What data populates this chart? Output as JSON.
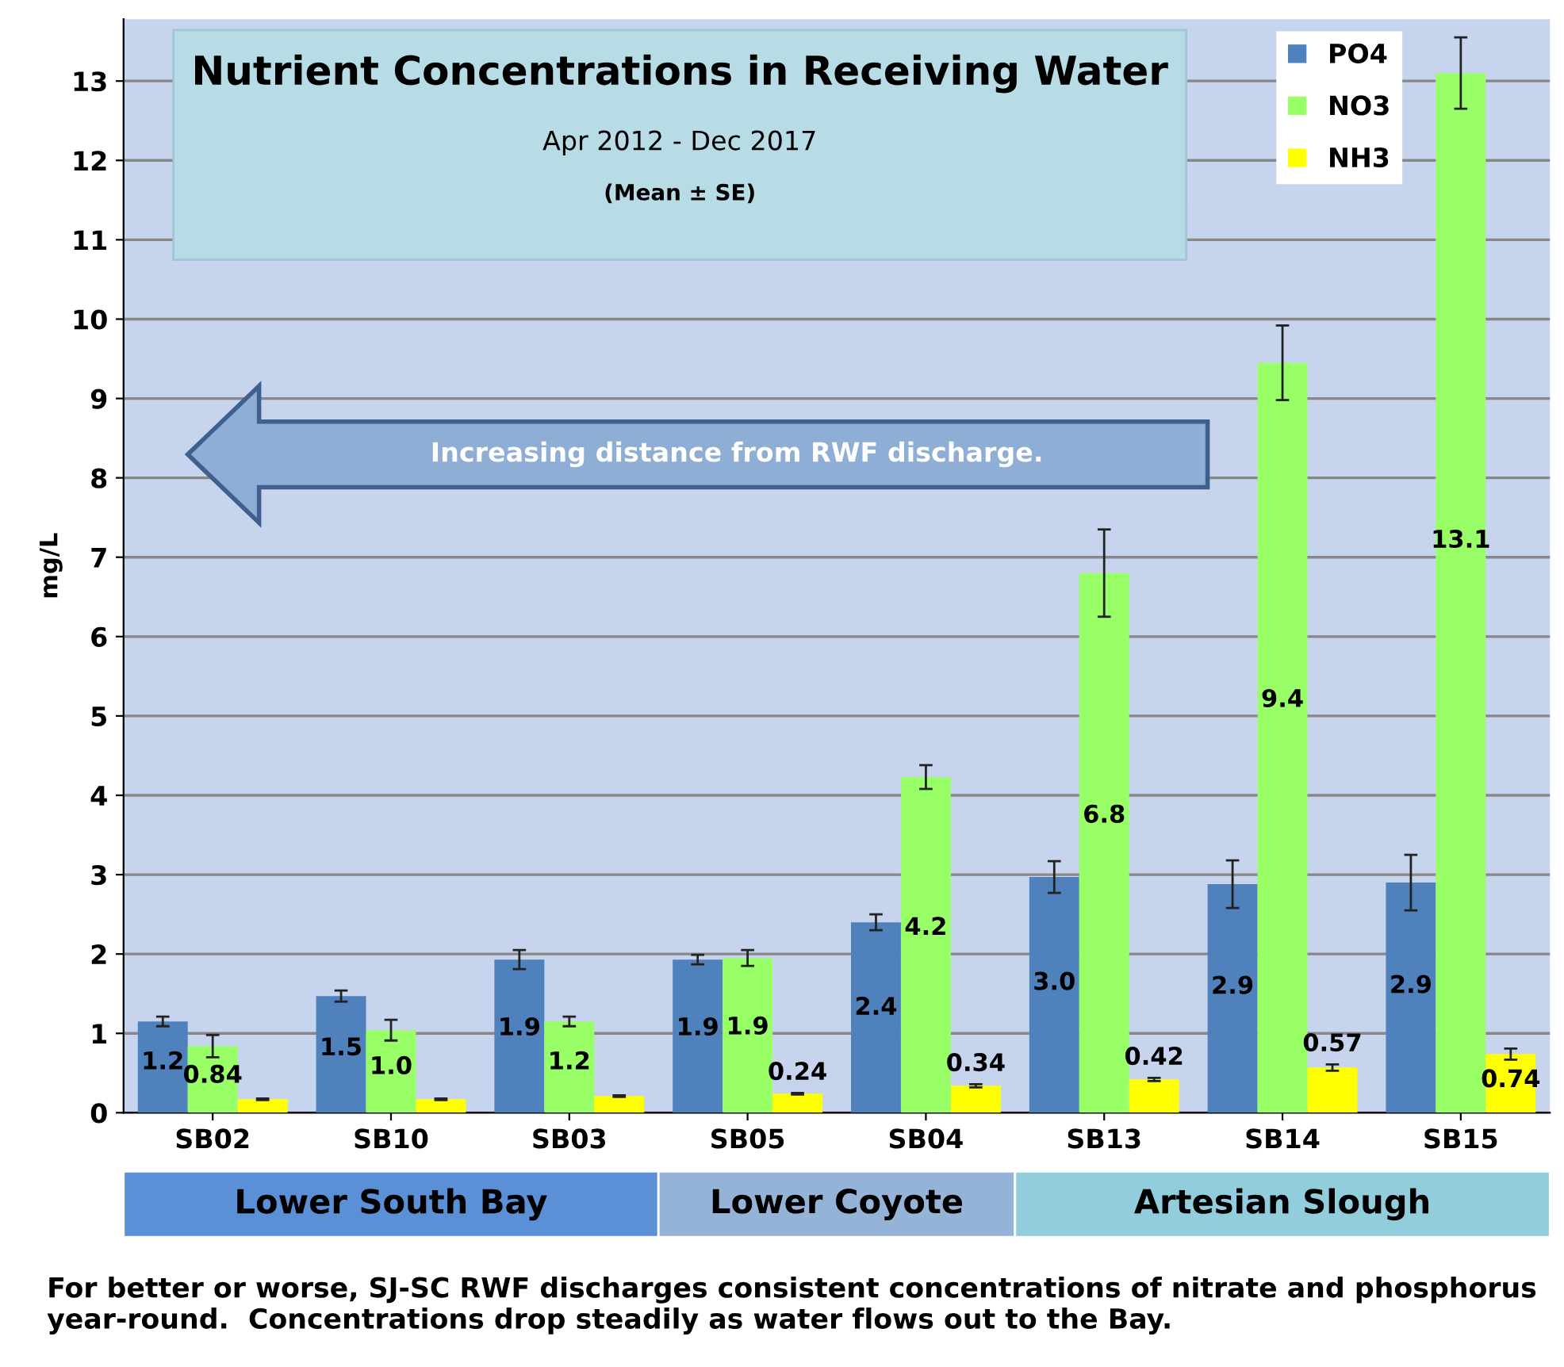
{
  "chart_data": {
    "type": "bar",
    "title": "Nutrient Concentrations in Receiving Water",
    "subtitle": "Apr 2012 - Dec 2017",
    "ylabel": "mg/L",
    "categories": [
      "SB02",
      "SB10",
      "SB03",
      "SB05",
      "SB04",
      "SB13",
      "SB14",
      "SB15"
    ],
    "series": [
      {
        "name": "PO4",
        "color": "#4f81bd",
        "values": [
          1.15,
          1.47,
          1.93,
          1.93,
          2.4,
          2.97,
          2.88,
          2.9
        ],
        "errors": [
          0.06,
          0.07,
          0.12,
          0.06,
          0.1,
          0.2,
          0.3,
          0.35
        ],
        "value_labels": [
          "1.2",
          "1.5",
          "1.9",
          "1.9",
          "2.4",
          "3.0",
          "2.9",
          "2.9"
        ]
      },
      {
        "name": "NO3",
        "color": "#99ff66",
        "values": [
          0.84,
          1.04,
          1.15,
          1.95,
          4.23,
          6.8,
          9.45,
          13.1
        ],
        "errors": [
          0.14,
          0.13,
          0.06,
          0.1,
          0.15,
          0.55,
          0.47,
          0.45
        ],
        "value_labels": [
          "0.84",
          "1.0",
          "1.2",
          "1.9",
          "4.2",
          "6.8",
          "9.4",
          "13.1"
        ]
      },
      {
        "name": "NH3",
        "color": "#ffff00",
        "values": [
          0.17,
          0.17,
          0.21,
          0.24,
          0.34,
          0.42,
          0.57,
          0.74
        ],
        "errors": [
          0.01,
          0.01,
          0.01,
          0.01,
          0.02,
          0.02,
          0.04,
          0.07
        ],
        "value_labels": [
          null,
          null,
          null,
          "0.24",
          "0.34",
          "0.42",
          "0.57",
          "0.74"
        ]
      }
    ],
    "ylim": [
      0,
      13.78
    ],
    "yticks": [
      0,
      1,
      2,
      3,
      4,
      5,
      6,
      7,
      8,
      9,
      10,
      11,
      12,
      13
    ],
    "grid": "y",
    "legend": "top right",
    "annotations": [
      "(Mean ± SE)",
      "Increasing distance from RWF discharge.",
      "Lower South Bay",
      "Lower Coyote",
      "Artesian Slough",
      "For better or worse, SJ-SC RWF discharges consistent concentrations of nitrate and phosphorus year-round.  Concentrations drop steadily as water flows out to the Bay."
    ]
  }
}
